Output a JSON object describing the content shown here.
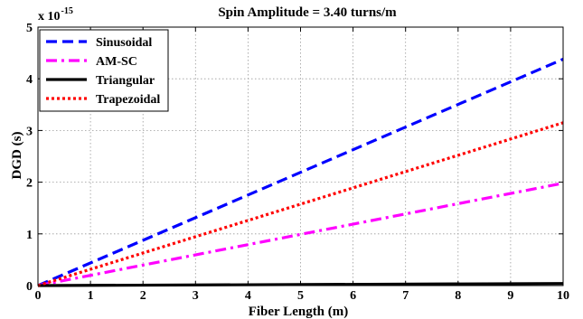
{
  "chart_data": {
    "type": "line",
    "title": "Spin Amplitude = 3.40 turns/m",
    "xlabel": "Fiber Length (m)",
    "ylabel": "DGD (s)",
    "y_exponent_base": "x 10",
    "y_exponent_power": "-15",
    "xlim": [
      0,
      10
    ],
    "ylim": [
      0,
      5
    ],
    "xticks": [
      "0",
      "1",
      "2",
      "3",
      "4",
      "5",
      "6",
      "7",
      "8",
      "9",
      "10"
    ],
    "yticks": [
      "0",
      "1",
      "2",
      "3",
      "4",
      "5"
    ],
    "grid": true,
    "legend_position": "top-left",
    "x": [
      0,
      10
    ],
    "series": [
      {
        "name": "Sinusoidal",
        "color": "#0000ff",
        "style": "dashed",
        "values": [
          0,
          4.38
        ]
      },
      {
        "name": "AM-SC",
        "color": "#ff00ff",
        "style": "dashdot",
        "values": [
          0,
          1.98
        ]
      },
      {
        "name": "Triangular",
        "color": "#000000",
        "style": "solid",
        "values": [
          0,
          0.04
        ]
      },
      {
        "name": "Trapezoidal",
        "color": "#ff0000",
        "style": "dotted",
        "values": [
          0,
          3.15
        ]
      }
    ]
  }
}
